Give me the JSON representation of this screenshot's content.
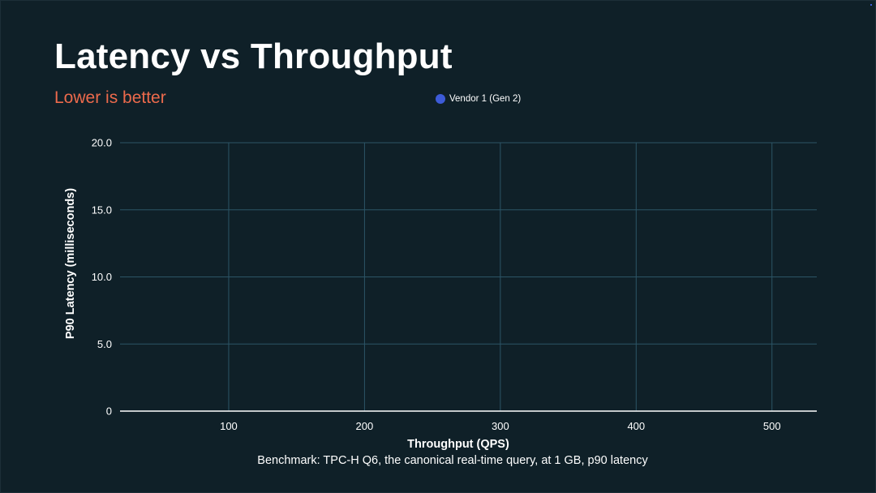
{
  "slide": {
    "title": "Latency vs Throughput",
    "subtitle": "Lower is better",
    "footnote": "Benchmark: TPC-H Q6, the canonical real-time query, at 1 GB, p90 latency"
  },
  "colors": {
    "background": "#0f2028",
    "subtitle": "#ec6a4c",
    "grid": "#2c5566",
    "axis": "#ffffff",
    "series_vendor1": "#3d5bd8"
  },
  "chart_data": {
    "type": "scatter",
    "title": "Latency vs Throughput",
    "subtitle": "Lower is better",
    "xlabel": "Throughput (QPS)",
    "ylabel": "P90 Latency (milliseconds)",
    "xlim": [
      20,
      533
    ],
    "ylim": [
      0,
      20
    ],
    "x_ticks": [
      100,
      200,
      300,
      400,
      500
    ],
    "x_tick_labels": [
      "100",
      "200",
      "300",
      "400",
      "500"
    ],
    "y_ticks": [
      0,
      5,
      10,
      15,
      20
    ],
    "y_tick_labels": [
      "0",
      "5.0",
      "10.0",
      "15.0",
      "20.0"
    ],
    "grid": true,
    "legend_position": "top-center",
    "series": [
      {
        "name": "Vendor 1 (Gen 2)",
        "color": "#3d5bd8",
        "points": []
      }
    ]
  }
}
